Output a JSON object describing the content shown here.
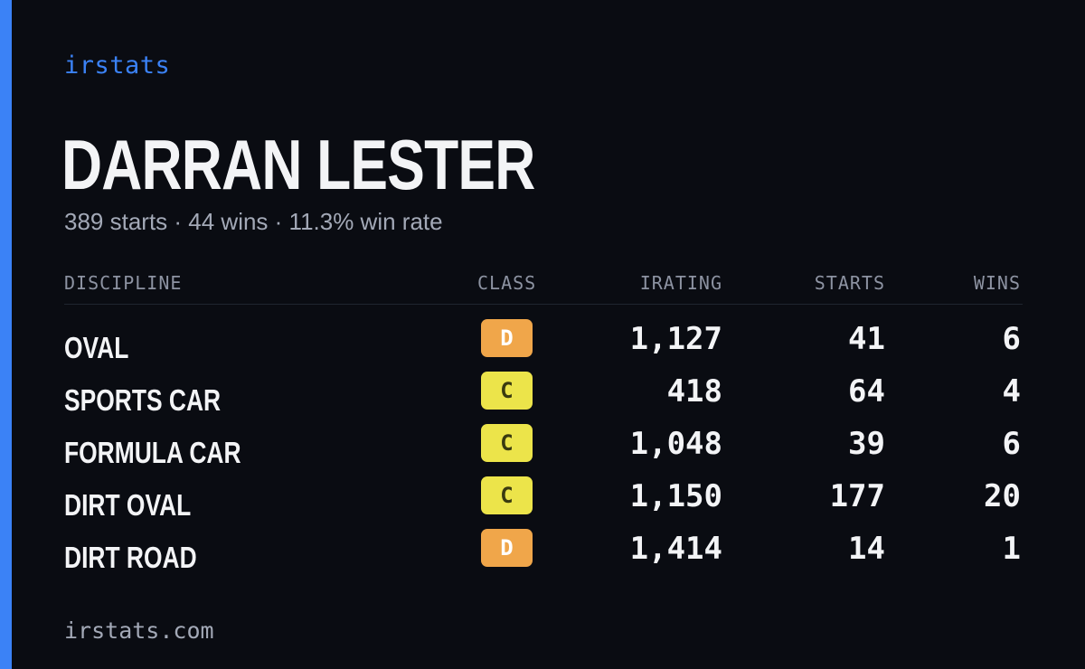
{
  "colors": {
    "accent": "#3b82f6",
    "class_d": "#f0a64a",
    "class_c": "#ece44a",
    "class_c_text": "#3a3a10",
    "class_d_text": "#ffffff"
  },
  "brand": "irstats",
  "driver": {
    "name": "DARRAN LESTER",
    "summary": "389 starts · 44 wins · 11.3% win rate"
  },
  "table": {
    "headers": {
      "discipline": "DISCIPLINE",
      "class": "CLASS",
      "irating": "IRATING",
      "starts": "STARTS",
      "wins": "WINS"
    },
    "rows": [
      {
        "discipline": "OVAL",
        "class": "D",
        "irating": "1,127",
        "starts": "41",
        "wins": "6"
      },
      {
        "discipline": "SPORTS CAR",
        "class": "C",
        "irating": "418",
        "starts": "64",
        "wins": "4"
      },
      {
        "discipline": "FORMULA CAR",
        "class": "C",
        "irating": "1,048",
        "starts": "39",
        "wins": "6"
      },
      {
        "discipline": "DIRT OVAL",
        "class": "C",
        "irating": "1,150",
        "starts": "177",
        "wins": "20"
      },
      {
        "discipline": "DIRT ROAD",
        "class": "D",
        "irating": "1,414",
        "starts": "14",
        "wins": "1"
      }
    ]
  },
  "footer": "irstats.com"
}
